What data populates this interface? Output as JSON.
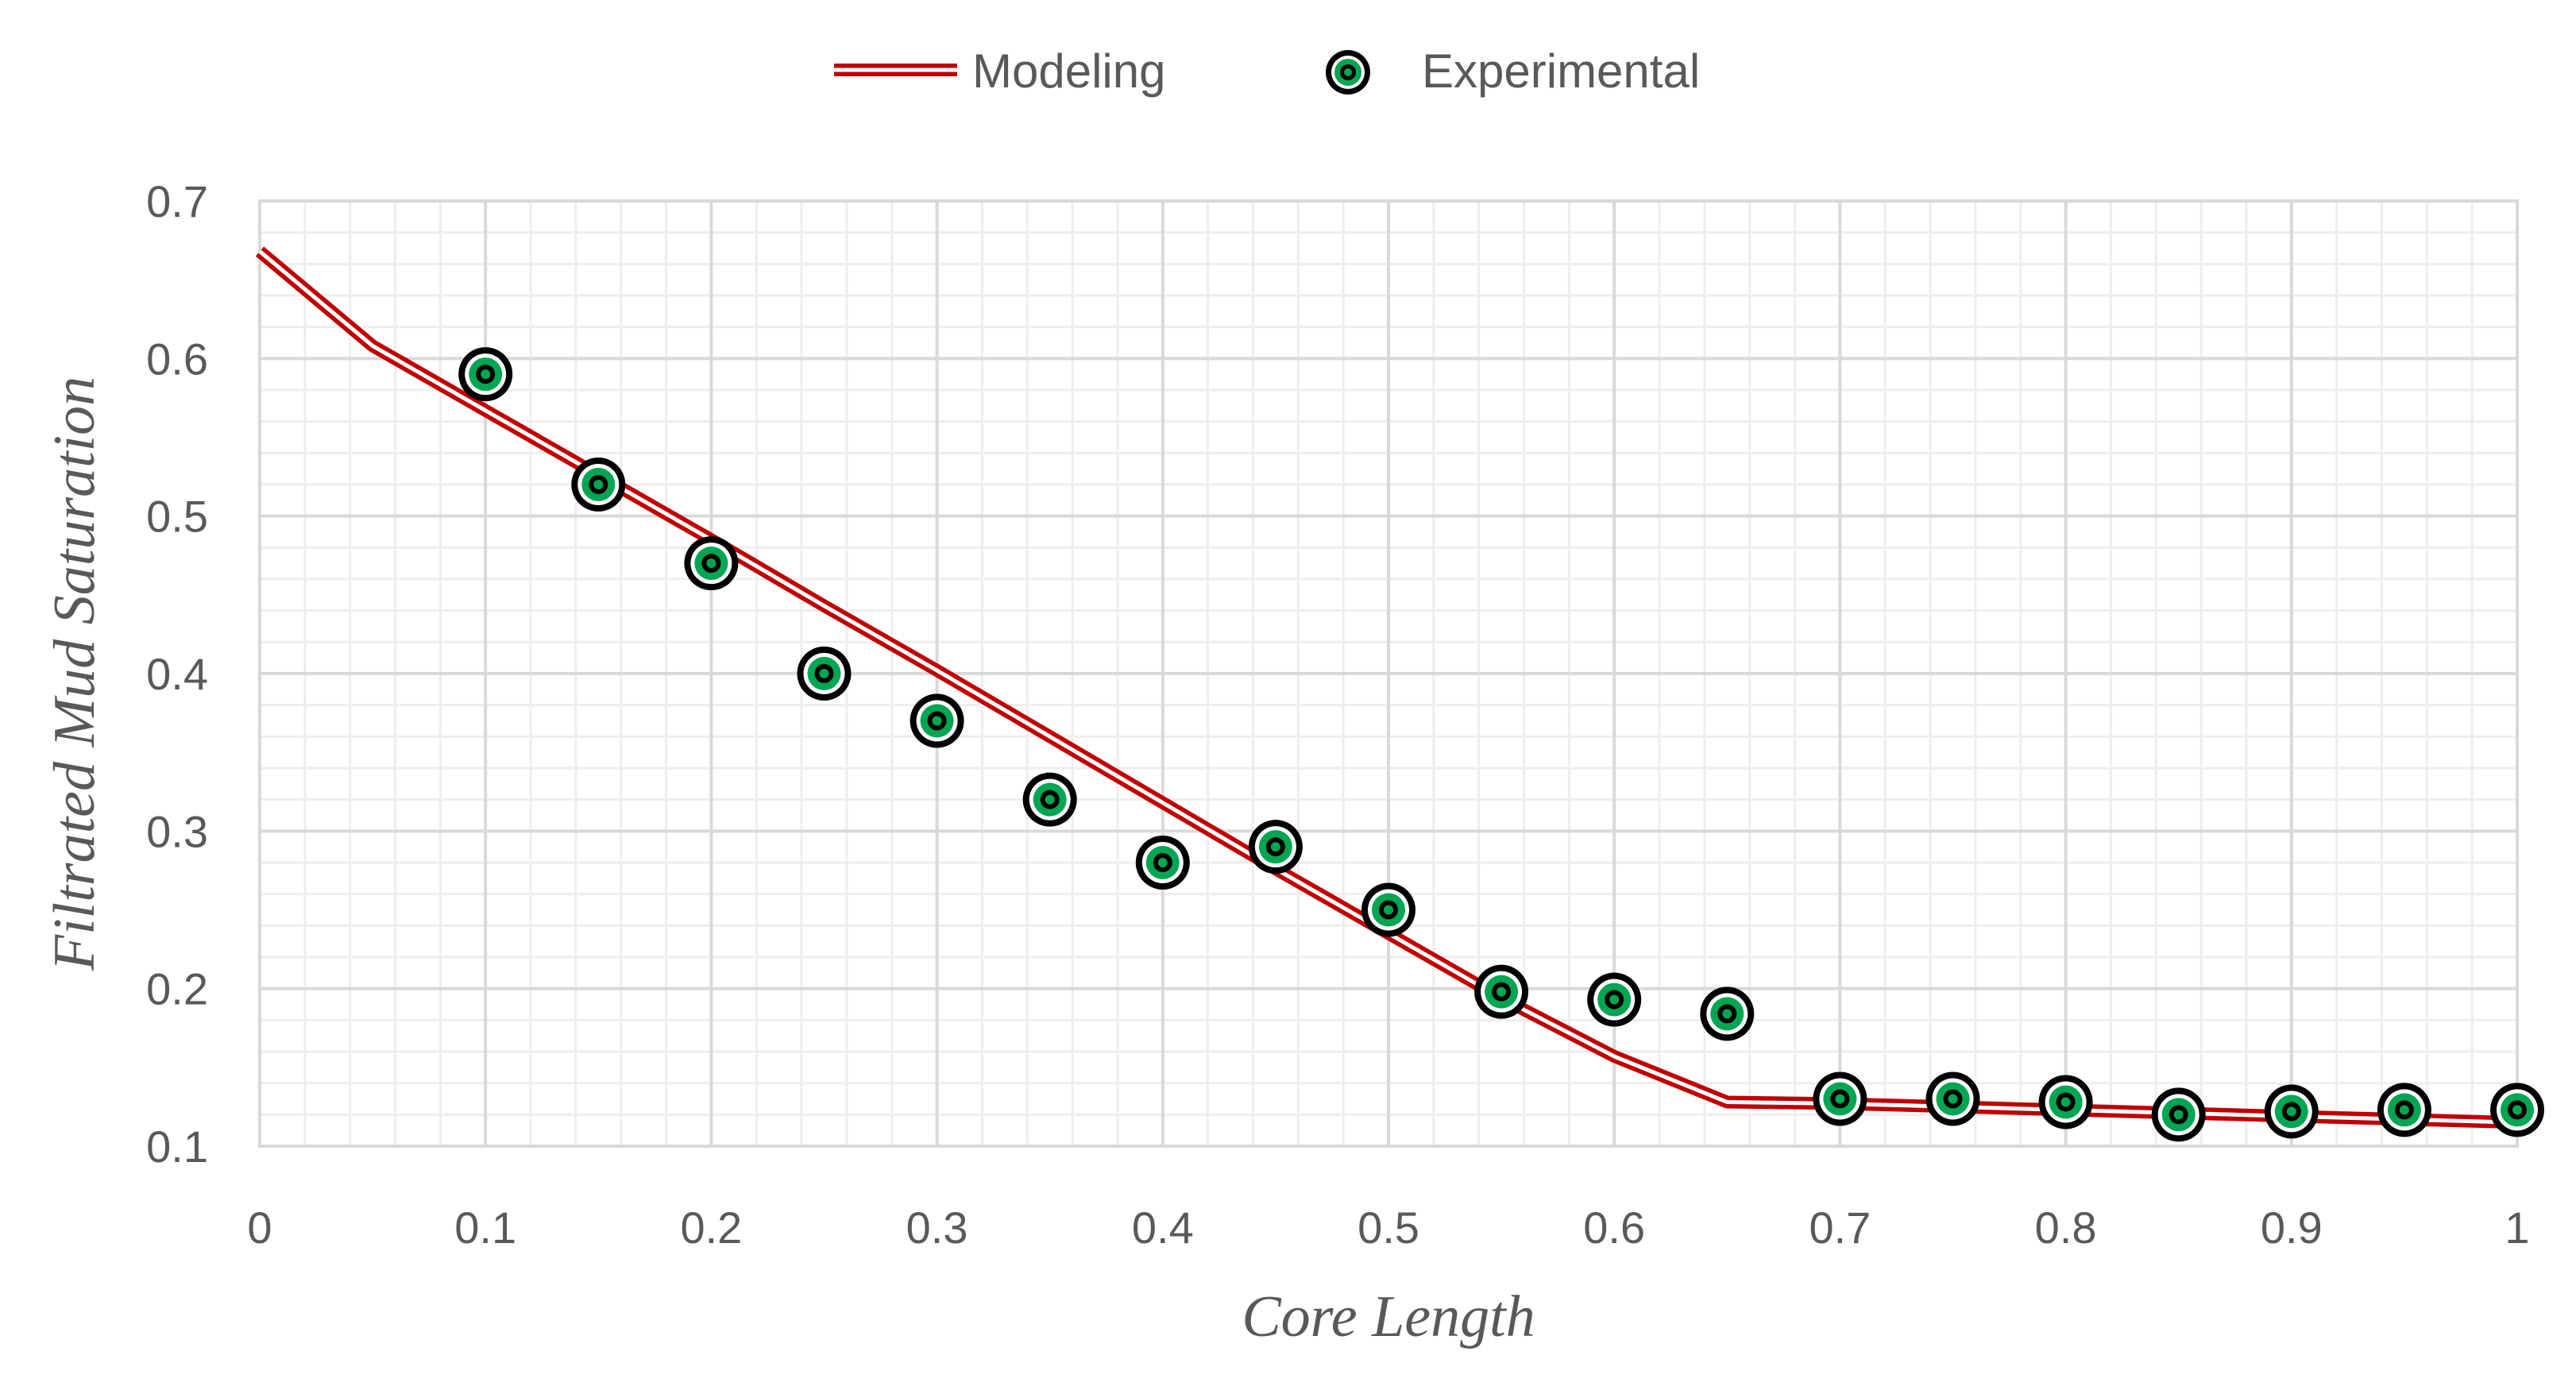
{
  "chart_data": {
    "type": "line+scatter",
    "xlabel": "Core Length",
    "ylabel": "Filtrated Mud Saturation",
    "xlim": [
      0,
      1
    ],
    "ylim": [
      0.1,
      0.7
    ],
    "x_ticks": [
      "0",
      "0.1",
      "0.2",
      "0.3",
      "0.4",
      "0.5",
      "0.6",
      "0.7",
      "0.8",
      "0.9",
      "1"
    ],
    "y_ticks": [
      "0.1",
      "0.2",
      "0.3",
      "0.4",
      "0.5",
      "0.6",
      "0.7"
    ],
    "grid": true,
    "legend_position": "top-center",
    "series": [
      {
        "name": "Modeling",
        "kind": "line",
        "color": "#c00000",
        "x": [
          0,
          0.05,
          0.1,
          0.15,
          0.2,
          0.25,
          0.3,
          0.35,
          0.4,
          0.45,
          0.5,
          0.55,
          0.6,
          0.65,
          0.7,
          0.75,
          0.8,
          0.85,
          0.9,
          0.95,
          1.0
        ],
        "y": [
          0.668,
          0.608,
          0.567,
          0.526,
          0.485,
          0.443,
          0.402,
          0.36,
          0.318,
          0.276,
          0.235,
          0.194,
          0.157,
          0.128,
          0.127,
          0.125,
          0.123,
          0.121,
          0.119,
          0.117,
          0.115
        ]
      },
      {
        "name": "Experimental",
        "kind": "scatter",
        "color": "#00b050",
        "x": [
          0.1,
          0.15,
          0.2,
          0.25,
          0.3,
          0.35,
          0.4,
          0.45,
          0.5,
          0.55,
          0.6,
          0.65,
          0.7,
          0.75,
          0.8,
          0.85,
          0.9,
          0.95,
          1.0
        ],
        "y": [
          0.59,
          0.52,
          0.47,
          0.4,
          0.37,
          0.32,
          0.28,
          0.29,
          0.25,
          0.198,
          0.193,
          0.184,
          0.13,
          0.13,
          0.128,
          0.12,
          0.122,
          0.123,
          0.123
        ]
      }
    ]
  }
}
